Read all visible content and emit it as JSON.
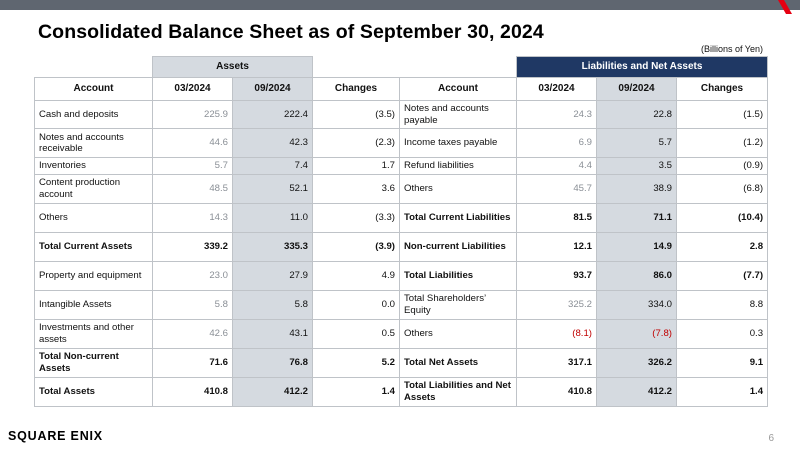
{
  "title": "Consolidated Balance Sheet as of September 30, 2024",
  "units": "(Billions of Yen)",
  "sections": {
    "assets": "Assets",
    "liabilities": "Liabilities and Net Assets"
  },
  "headers": {
    "account": "Account",
    "prev": "03/2024",
    "curr": "09/2024",
    "changes": "Changes"
  },
  "rows": [
    {
      "a_label": "Cash and deposits",
      "a_prev": "225.9",
      "a_curr": "222.4",
      "a_chg": "(3.5)",
      "a_bold": false,
      "l_label": "Notes and accounts payable",
      "l_prev": "24.3",
      "l_curr": "22.8",
      "l_chg": "(1.5)",
      "l_bold": false
    },
    {
      "a_label": "Notes and accounts receivable",
      "a_prev": "44.6",
      "a_curr": "42.3",
      "a_chg": "(2.3)",
      "a_bold": false,
      "l_label": "Income taxes payable",
      "l_prev": "6.9",
      "l_curr": "5.7",
      "l_chg": "(1.2)",
      "l_bold": false
    },
    {
      "a_label": "Inventories",
      "a_prev": "5.7",
      "a_curr": "7.4",
      "a_chg": "1.7",
      "a_bold": false,
      "l_label": "Refund liabilities",
      "l_prev": "4.4",
      "l_curr": "3.5",
      "l_chg": "(0.9)",
      "l_bold": false
    },
    {
      "a_label": "Content production account",
      "a_prev": "48.5",
      "a_curr": "52.1",
      "a_chg": "3.6",
      "a_bold": false,
      "l_label": "Others",
      "l_prev": "45.7",
      "l_curr": "38.9",
      "l_chg": "(6.8)",
      "l_bold": false
    },
    {
      "a_label": "Others",
      "a_prev": "14.3",
      "a_curr": "11.0",
      "a_chg": "(3.3)",
      "a_bold": false,
      "l_label": "Total Current Liabilities",
      "l_prev": "81.5",
      "l_curr": "71.1",
      "l_chg": "(10.4)",
      "l_bold": true
    },
    {
      "a_label": "Total Current Assets",
      "a_prev": "339.2",
      "a_curr": "335.3",
      "a_chg": "(3.9)",
      "a_bold": true,
      "l_label": "Non-current Liabilities",
      "l_prev": "12.1",
      "l_curr": "14.9",
      "l_chg": "2.8",
      "l_bold": true
    },
    {
      "a_label": "Property and equipment",
      "a_prev": "23.0",
      "a_curr": "27.9",
      "a_chg": "4.9",
      "a_bold": false,
      "l_label": "Total Liabilities",
      "l_prev": "93.7",
      "l_curr": "86.0",
      "l_chg": "(7.7)",
      "l_bold": true
    },
    {
      "a_label": "Intangible Assets",
      "a_prev": "5.8",
      "a_curr": "5.8",
      "a_chg": "0.0",
      "a_bold": false,
      "l_label": "Total Shareholders’ Equity",
      "l_prev": "325.2",
      "l_curr": "334.0",
      "l_chg": "8.8",
      "l_bold": false
    },
    {
      "a_label": "Investments and other assets",
      "a_prev": "42.6",
      "a_curr": "43.1",
      "a_chg": "0.5",
      "a_bold": false,
      "l_label": "Others",
      "l_prev": "(8.1)",
      "l_curr": "(7.8)",
      "l_chg": "0.3",
      "l_bold": false,
      "l_neg": true
    },
    {
      "a_label": "Total Non-current Assets",
      "a_prev": "71.6",
      "a_curr": "76.8",
      "a_chg": "5.2",
      "a_bold": true,
      "l_label": "Total Net Assets",
      "l_prev": "317.1",
      "l_curr": "326.2",
      "l_chg": "9.1",
      "l_bold": true
    },
    {
      "a_label": "Total Assets",
      "a_prev": "410.8",
      "a_curr": "412.2",
      "a_chg": "1.4",
      "a_bold": true,
      "l_label": "Total Liabilities and Net Assets",
      "l_prev": "410.8",
      "l_curr": "412.2",
      "l_chg": "1.4",
      "l_bold": true
    }
  ],
  "footer": {
    "logo": "SQUARE ENIX",
    "page_number": "6"
  },
  "colors": {
    "liab_header": "#1f3864",
    "shade": "#d5dae0",
    "negative": "#c00000",
    "top_bar": "#5f6670",
    "accent": "#e60012"
  }
}
